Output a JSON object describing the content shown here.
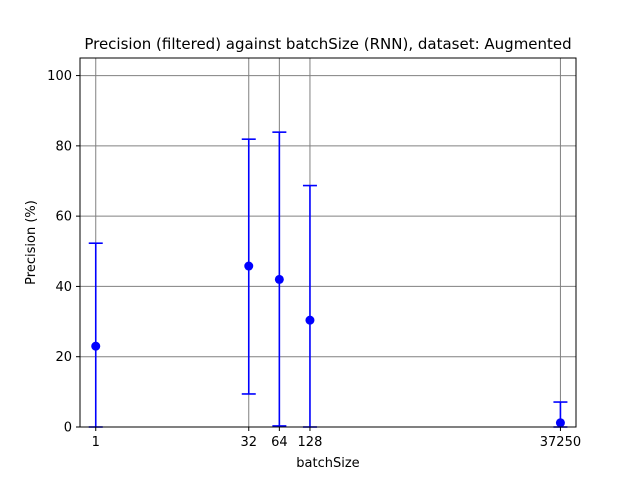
{
  "chart_data": {
    "type": "scatter",
    "title": "Precision (filtered) against batchSize (RNN), dataset: Augmented",
    "xlabel": "batchSize",
    "ylabel": "Precision (%)",
    "x_scale": "log",
    "xlim": [
      0.7,
      53000
    ],
    "ylim": [
      0,
      105
    ],
    "x_ticks": [
      1,
      32,
      64,
      128,
      37250
    ],
    "x_tick_labels": [
      "1",
      "32",
      "64",
      "128",
      "37250"
    ],
    "y_ticks": [
      0,
      20,
      40,
      60,
      80,
      100
    ],
    "y_tick_labels": [
      "0",
      "20",
      "40",
      "60",
      "80",
      "100"
    ],
    "grid": true,
    "colors": {
      "series": "#0000ff",
      "grid": "#808080",
      "axes": "#000000"
    },
    "series": [
      {
        "points": [
          {
            "x": 1,
            "y": 23.0,
            "y_low": 0.0,
            "y_high": 52.3
          },
          {
            "x": 32,
            "y": 45.8,
            "y_low": 9.4,
            "y_high": 81.9
          },
          {
            "x": 64,
            "y": 42.0,
            "y_low": 0.3,
            "y_high": 83.9
          },
          {
            "x": 128,
            "y": 30.4,
            "y_low": 0.0,
            "y_high": 68.7
          },
          {
            "x": 37250,
            "y": 1.2,
            "y_low": 0.0,
            "y_high": 7.1
          }
        ]
      }
    ]
  }
}
